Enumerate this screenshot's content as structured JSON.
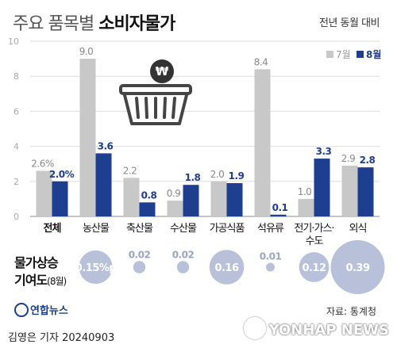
{
  "title_light": "주요 품목별",
  "title_bold": "소비자물가",
  "subtitle": "전년 동월 대비",
  "contribution_label": "물가상승",
  "contribution_label2": "기여도",
  "contribution_label_note": "(8월)",
  "source": "자료: 통계청",
  "logo_text": "연합뉴스",
  "byline": "김영은 기자  20240903",
  "watermark": "YONHAP NEWS",
  "colors": {
    "july": "#c8c8c8",
    "august": "#1e3f8f",
    "bubble": "#b8c0da",
    "grid": "#dddddd"
  },
  "chart_data": {
    "type": "bar",
    "categories": [
      "전체",
      "농산물",
      "축산물",
      "수산물",
      "가공식품",
      "석유류",
      "전기·가스·수도",
      "외식"
    ],
    "category_lines": [
      [
        "전체"
      ],
      [
        "농산물"
      ],
      [
        "축산물"
      ],
      [
        "수산물"
      ],
      [
        "가공식품"
      ],
      [
        "석유류"
      ],
      [
        "전기·가스·",
        "수도"
      ],
      [
        "외식"
      ]
    ],
    "series": [
      {
        "name": "7월",
        "values": [
          2.6,
          9.0,
          2.2,
          0.9,
          2.0,
          8.4,
          1.0,
          2.9
        ],
        "labels": [
          "2.6%",
          "9.0",
          "2.2",
          "0.9",
          "2.0",
          "8.4",
          "1.0",
          "2.9"
        ]
      },
      {
        "name": "8월",
        "values": [
          2.0,
          3.6,
          0.8,
          1.8,
          1.9,
          0.1,
          3.3,
          2.8
        ],
        "labels": [
          "2.0%",
          "3.6",
          "0.8",
          "1.8",
          "1.9",
          "0.1",
          "3.3",
          "2.8"
        ]
      }
    ],
    "yticks": [
      0,
      2,
      4,
      6,
      8,
      10
    ],
    "ylim": [
      0,
      10
    ],
    "contribution": {
      "values": [
        0.15,
        0.02,
        0.02,
        0.16,
        0.01,
        0.12,
        0.39
      ],
      "labels": [
        "0.15%p",
        "0.02",
        "0.02",
        "0.16",
        "0.01",
        "0.12",
        "0.39"
      ]
    }
  }
}
